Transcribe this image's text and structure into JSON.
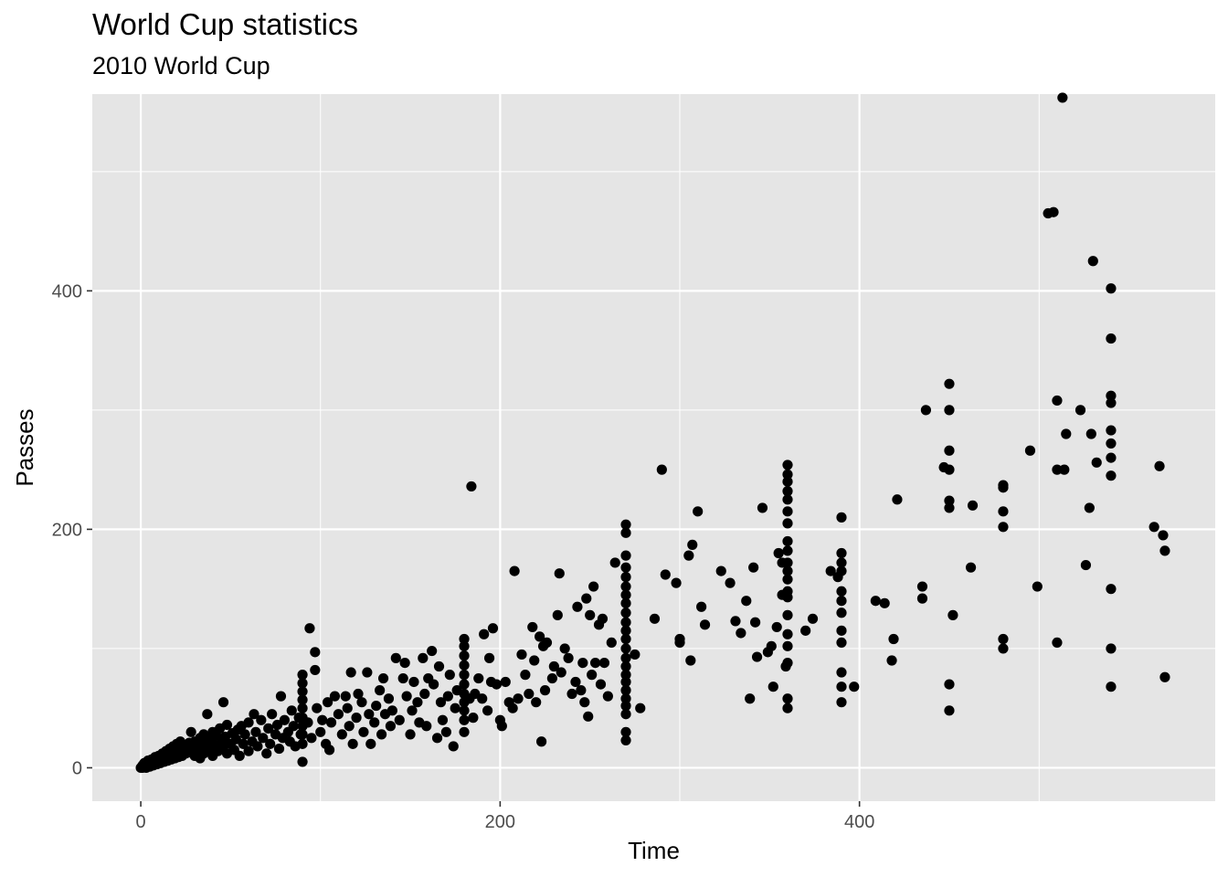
{
  "chart_data": {
    "type": "scatter",
    "title": "World Cup statistics",
    "subtitle": "2010 World Cup",
    "xlabel": "Time",
    "ylabel": "Passes",
    "xlim": [
      -27,
      598
    ],
    "ylim": [
      -28,
      565
    ],
    "x_ticks": [
      0,
      200,
      400
    ],
    "y_ticks": [
      0,
      200,
      400
    ],
    "grid": true,
    "colors": {
      "panel": "#E5E5E5",
      "grid": "#FFFFFF",
      "point": "#000000",
      "tick_text": "#4D4D4D"
    },
    "points": [
      [
        0,
        0
      ],
      [
        1,
        0
      ],
      [
        1,
        2
      ],
      [
        2,
        1
      ],
      [
        2,
        4
      ],
      [
        3,
        0
      ],
      [
        3,
        3
      ],
      [
        4,
        2
      ],
      [
        4,
        6
      ],
      [
        5,
        1
      ],
      [
        5,
        4
      ],
      [
        6,
        3
      ],
      [
        6,
        7
      ],
      [
        7,
        2
      ],
      [
        7,
        5
      ],
      [
        8,
        4
      ],
      [
        8,
        9
      ],
      [
        9,
        3
      ],
      [
        9,
        6
      ],
      [
        10,
        5
      ],
      [
        10,
        10
      ],
      [
        11,
        4
      ],
      [
        11,
        8
      ],
      [
        12,
        6
      ],
      [
        12,
        12
      ],
      [
        13,
        5
      ],
      [
        13,
        9
      ],
      [
        14,
        7
      ],
      [
        14,
        14
      ],
      [
        15,
        6
      ],
      [
        15,
        11
      ],
      [
        16,
        8
      ],
      [
        16,
        16
      ],
      [
        17,
        7
      ],
      [
        17,
        13
      ],
      [
        18,
        10
      ],
      [
        18,
        18
      ],
      [
        19,
        8
      ],
      [
        19,
        14
      ],
      [
        20,
        11
      ],
      [
        20,
        20
      ],
      [
        21,
        9
      ],
      [
        21,
        15
      ],
      [
        22,
        12
      ],
      [
        22,
        22
      ],
      [
        23,
        10
      ],
      [
        23,
        17
      ],
      [
        24,
        14
      ],
      [
        25,
        12
      ],
      [
        25,
        19
      ],
      [
        26,
        16
      ],
      [
        27,
        13
      ],
      [
        27,
        21
      ],
      [
        28,
        18
      ],
      [
        28,
        30
      ],
      [
        29,
        14
      ],
      [
        30,
        22
      ],
      [
        30,
        10
      ],
      [
        31,
        20
      ],
      [
        32,
        15
      ],
      [
        33,
        25
      ],
      [
        33,
        8
      ],
      [
        34,
        18
      ],
      [
        35,
        28
      ],
      [
        35,
        12
      ],
      [
        36,
        21
      ],
      [
        37,
        45
      ],
      [
        38,
        16
      ],
      [
        39,
        24
      ],
      [
        40,
        30
      ],
      [
        40,
        10
      ],
      [
        41,
        19
      ],
      [
        42,
        27
      ],
      [
        43,
        14
      ],
      [
        44,
        33
      ],
      [
        45,
        22
      ],
      [
        46,
        55
      ],
      [
        46,
        18
      ],
      [
        47,
        26
      ],
      [
        48,
        36
      ],
      [
        48,
        12
      ],
      [
        50,
        20
      ],
      [
        51,
        29
      ],
      [
        52,
        15
      ],
      [
        53,
        24
      ],
      [
        54,
        32
      ],
      [
        55,
        10
      ],
      [
        56,
        35
      ],
      [
        57,
        20
      ],
      [
        58,
        28
      ],
      [
        60,
        38
      ],
      [
        60,
        14
      ],
      [
        62,
        22
      ],
      [
        63,
        45
      ],
      [
        64,
        30
      ],
      [
        65,
        18
      ],
      [
        67,
        40
      ],
      [
        68,
        25
      ],
      [
        70,
        12
      ],
      [
        71,
        33
      ],
      [
        72,
        20
      ],
      [
        73,
        45
      ],
      [
        75,
        28
      ],
      [
        76,
        36
      ],
      [
        77,
        16
      ],
      [
        78,
        60
      ],
      [
        79,
        25
      ],
      [
        80,
        40
      ],
      [
        82,
        30
      ],
      [
        83,
        22
      ],
      [
        84,
        48
      ],
      [
        85,
        35
      ],
      [
        86,
        18
      ],
      [
        88,
        42
      ],
      [
        89,
        28
      ],
      [
        90,
        5
      ],
      [
        90,
        20
      ],
      [
        90,
        28
      ],
      [
        90,
        35
      ],
      [
        90,
        42
      ],
      [
        90,
        50
      ],
      [
        90,
        57
      ],
      [
        90,
        64
      ],
      [
        90,
        71
      ],
      [
        90,
        78
      ],
      [
        93,
        38
      ],
      [
        94,
        117
      ],
      [
        95,
        25
      ],
      [
        97,
        97
      ],
      [
        97,
        82
      ],
      [
        98,
        50
      ],
      [
        100,
        30
      ],
      [
        101,
        40
      ],
      [
        103,
        20
      ],
      [
        104,
        55
      ],
      [
        105,
        15
      ],
      [
        106,
        38
      ],
      [
        108,
        60
      ],
      [
        110,
        45
      ],
      [
        112,
        28
      ],
      [
        114,
        60
      ],
      [
        115,
        50
      ],
      [
        116,
        35
      ],
      [
        117,
        80
      ],
      [
        118,
        20
      ],
      [
        120,
        42
      ],
      [
        121,
        62
      ],
      [
        123,
        55
      ],
      [
        124,
        30
      ],
      [
        126,
        80
      ],
      [
        127,
        45
      ],
      [
        128,
        20
      ],
      [
        130,
        38
      ],
      [
        131,
        52
      ],
      [
        133,
        65
      ],
      [
        134,
        28
      ],
      [
        135,
        75
      ],
      [
        136,
        45
      ],
      [
        138,
        58
      ],
      [
        139,
        35
      ],
      [
        140,
        48
      ],
      [
        142,
        92
      ],
      [
        144,
        40
      ],
      [
        146,
        75
      ],
      [
        147,
        88
      ],
      [
        148,
        60
      ],
      [
        150,
        28
      ],
      [
        151,
        48
      ],
      [
        152,
        72
      ],
      [
        154,
        55
      ],
      [
        155,
        38
      ],
      [
        157,
        92
      ],
      [
        158,
        62
      ],
      [
        159,
        35
      ],
      [
        160,
        75
      ],
      [
        162,
        98
      ],
      [
        163,
        70
      ],
      [
        165,
        25
      ],
      [
        166,
        85
      ],
      [
        167,
        55
      ],
      [
        168,
        40
      ],
      [
        170,
        30
      ],
      [
        171,
        60
      ],
      [
        172,
        78
      ],
      [
        174,
        18
      ],
      [
        175,
        50
      ],
      [
        176,
        65
      ],
      [
        180,
        30
      ],
      [
        180,
        40
      ],
      [
        180,
        48
      ],
      [
        180,
        55
      ],
      [
        180,
        62
      ],
      [
        180,
        70
      ],
      [
        180,
        78
      ],
      [
        180,
        86
      ],
      [
        180,
        94
      ],
      [
        180,
        102
      ],
      [
        180,
        108
      ],
      [
        183,
        58
      ],
      [
        184,
        236
      ],
      [
        185,
        42
      ],
      [
        186,
        62
      ],
      [
        188,
        75
      ],
      [
        190,
        58
      ],
      [
        191,
        112
      ],
      [
        193,
        48
      ],
      [
        194,
        92
      ],
      [
        195,
        72
      ],
      [
        196,
        117
      ],
      [
        198,
        70
      ],
      [
        200,
        40
      ],
      [
        201,
        35
      ],
      [
        203,
        72
      ],
      [
        205,
        55
      ],
      [
        207,
        50
      ],
      [
        208,
        165
      ],
      [
        210,
        58
      ],
      [
        212,
        95
      ],
      [
        214,
        78
      ],
      [
        216,
        62
      ],
      [
        218,
        118
      ],
      [
        219,
        90
      ],
      [
        220,
        55
      ],
      [
        222,
        110
      ],
      [
        223,
        22
      ],
      [
        224,
        102
      ],
      [
        225,
        65
      ],
      [
        226,
        105
      ],
      [
        229,
        75
      ],
      [
        230,
        85
      ],
      [
        232,
        128
      ],
      [
        233,
        163
      ],
      [
        234,
        80
      ],
      [
        236,
        100
      ],
      [
        238,
        92
      ],
      [
        240,
        62
      ],
      [
        242,
        72
      ],
      [
        243,
        135
      ],
      [
        245,
        65
      ],
      [
        246,
        88
      ],
      [
        247,
        55
      ],
      [
        248,
        142
      ],
      [
        249,
        43
      ],
      [
        250,
        128
      ],
      [
        251,
        78
      ],
      [
        252,
        152
      ],
      [
        253,
        88
      ],
      [
        255,
        120
      ],
      [
        256,
        70
      ],
      [
        257,
        125
      ],
      [
        258,
        88
      ],
      [
        260,
        60
      ],
      [
        262,
        105
      ],
      [
        264,
        172
      ],
      [
        270,
        23
      ],
      [
        270,
        30
      ],
      [
        270,
        45
      ],
      [
        270,
        52
      ],
      [
        270,
        58
      ],
      [
        270,
        65
      ],
      [
        270,
        72
      ],
      [
        270,
        78
      ],
      [
        270,
        85
      ],
      [
        270,
        92
      ],
      [
        270,
        100
      ],
      [
        270,
        108
      ],
      [
        270,
        115
      ],
      [
        270,
        122
      ],
      [
        270,
        130
      ],
      [
        270,
        138
      ],
      [
        270,
        145
      ],
      [
        270,
        152
      ],
      [
        270,
        160
      ],
      [
        270,
        168
      ],
      [
        270,
        178
      ],
      [
        270,
        197
      ],
      [
        270,
        204
      ],
      [
        275,
        95
      ],
      [
        278,
        50
      ],
      [
        286,
        125
      ],
      [
        290,
        250
      ],
      [
        292,
        162
      ],
      [
        298,
        155
      ],
      [
        300,
        105
      ],
      [
        300,
        108
      ],
      [
        305,
        178
      ],
      [
        306,
        90
      ],
      [
        307,
        187
      ],
      [
        310,
        215
      ],
      [
        312,
        135
      ],
      [
        314,
        120
      ],
      [
        323,
        165
      ],
      [
        328,
        155
      ],
      [
        331,
        123
      ],
      [
        334,
        113
      ],
      [
        337,
        140
      ],
      [
        339,
        58
      ],
      [
        341,
        168
      ],
      [
        342,
        122
      ],
      [
        343,
        93
      ],
      [
        346,
        218
      ],
      [
        349,
        97
      ],
      [
        351,
        102
      ],
      [
        352,
        68
      ],
      [
        354,
        118
      ],
      [
        355,
        180
      ],
      [
        357,
        172
      ],
      [
        357,
        145
      ],
      [
        359,
        85
      ],
      [
        360,
        50
      ],
      [
        360,
        58
      ],
      [
        360,
        88
      ],
      [
        360,
        102
      ],
      [
        360,
        112
      ],
      [
        360,
        128
      ],
      [
        360,
        143
      ],
      [
        360,
        148
      ],
      [
        360,
        158
      ],
      [
        360,
        165
      ],
      [
        360,
        172
      ],
      [
        360,
        182
      ],
      [
        360,
        190
      ],
      [
        360,
        205
      ],
      [
        360,
        215
      ],
      [
        360,
        225
      ],
      [
        360,
        232
      ],
      [
        360,
        240
      ],
      [
        360,
        246
      ],
      [
        360,
        254
      ],
      [
        370,
        115
      ],
      [
        374,
        125
      ],
      [
        384,
        165
      ],
      [
        388,
        160
      ],
      [
        390,
        55
      ],
      [
        390,
        68
      ],
      [
        390,
        80
      ],
      [
        390,
        105
      ],
      [
        390,
        115
      ],
      [
        390,
        130
      ],
      [
        390,
        140
      ],
      [
        390,
        148
      ],
      [
        390,
        165
      ],
      [
        390,
        172
      ],
      [
        390,
        180
      ],
      [
        390,
        210
      ],
      [
        397,
        68
      ],
      [
        409,
        140
      ],
      [
        414,
        138
      ],
      [
        418,
        90
      ],
      [
        419,
        108
      ],
      [
        421,
        225
      ],
      [
        435,
        142
      ],
      [
        435,
        152
      ],
      [
        437,
        300
      ],
      [
        450,
        48
      ],
      [
        450,
        70
      ],
      [
        450,
        218
      ],
      [
        450,
        224
      ],
      [
        450,
        250
      ],
      [
        450,
        266
      ],
      [
        450,
        300
      ],
      [
        450,
        322
      ],
      [
        452,
        128
      ],
      [
        447,
        252
      ],
      [
        462,
        168
      ],
      [
        463,
        220
      ],
      [
        480,
        100
      ],
      [
        480,
        108
      ],
      [
        480,
        202
      ],
      [
        480,
        215
      ],
      [
        480,
        235
      ],
      [
        480,
        237
      ],
      [
        495,
        266
      ],
      [
        499,
        152
      ],
      [
        505,
        465
      ],
      [
        508,
        466
      ],
      [
        510,
        105
      ],
      [
        510,
        308
      ],
      [
        510,
        250
      ],
      [
        513,
        562
      ],
      [
        514,
        250
      ],
      [
        515,
        280
      ],
      [
        523,
        300
      ],
      [
        526,
        170
      ],
      [
        528,
        218
      ],
      [
        529,
        280
      ],
      [
        530,
        425
      ],
      [
        532,
        256
      ],
      [
        540,
        68
      ],
      [
        540,
        100
      ],
      [
        540,
        150
      ],
      [
        540,
        245
      ],
      [
        540,
        260
      ],
      [
        540,
        272
      ],
      [
        540,
        283
      ],
      [
        540,
        306
      ],
      [
        540,
        312
      ],
      [
        540,
        360
      ],
      [
        540,
        402
      ],
      [
        564,
        202
      ],
      [
        567,
        253
      ],
      [
        569,
        195
      ],
      [
        570,
        182
      ],
      [
        570,
        76
      ]
    ]
  }
}
